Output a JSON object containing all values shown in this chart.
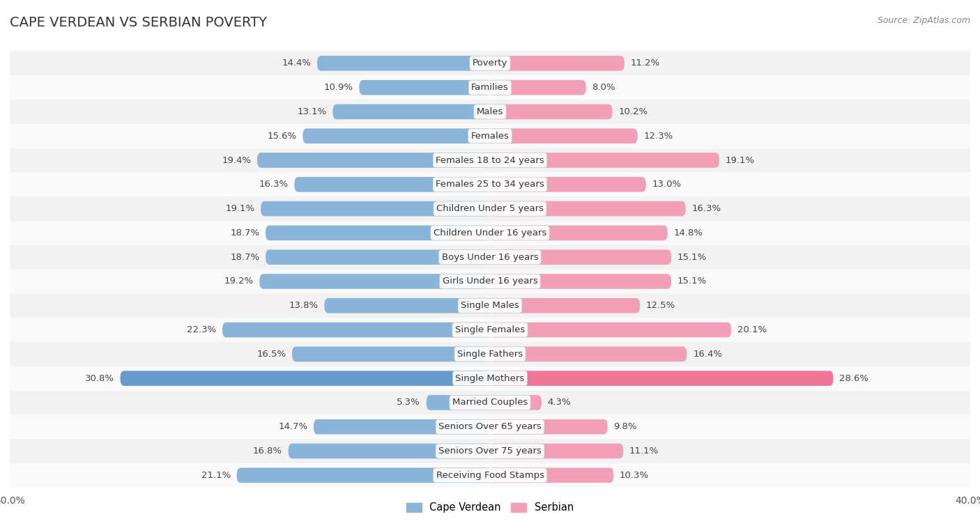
{
  "title": "CAPE VERDEAN VS SERBIAN POVERTY",
  "source": "Source: ZipAtlas.com",
  "categories": [
    "Poverty",
    "Families",
    "Males",
    "Females",
    "Females 18 to 24 years",
    "Females 25 to 34 years",
    "Children Under 5 years",
    "Children Under 16 years",
    "Boys Under 16 years",
    "Girls Under 16 years",
    "Single Males",
    "Single Females",
    "Single Fathers",
    "Single Mothers",
    "Married Couples",
    "Seniors Over 65 years",
    "Seniors Over 75 years",
    "Receiving Food Stamps"
  ],
  "cape_verdean": [
    14.4,
    10.9,
    13.1,
    15.6,
    19.4,
    16.3,
    19.1,
    18.7,
    18.7,
    19.2,
    13.8,
    22.3,
    16.5,
    30.8,
    5.3,
    14.7,
    16.8,
    21.1
  ],
  "serbian": [
    11.2,
    8.0,
    10.2,
    12.3,
    19.1,
    13.0,
    16.3,
    14.8,
    15.1,
    15.1,
    12.5,
    20.1,
    16.4,
    28.6,
    4.3,
    9.8,
    11.1,
    10.3
  ],
  "cape_verdean_color": "#8ab4d8",
  "serbian_color": "#f2a0b8",
  "single_mothers_cv_color": "#6699cc",
  "single_mothers_sr_color": "#ee7799",
  "background_color": "#ffffff",
  "row_bg_odd": "#f2f2f2",
  "row_bg_even": "#fafafa",
  "bar_height": 0.62,
  "max_value": 40.0,
  "label_fontsize": 9.5,
  "cat_fontsize": 9.5,
  "title_fontsize": 14,
  "legend_fontsize": 10.5,
  "source_fontsize": 9
}
